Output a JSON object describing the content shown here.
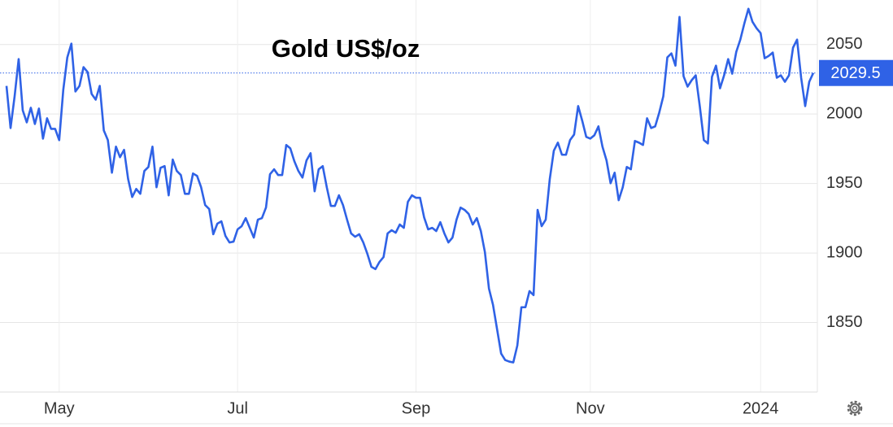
{
  "chart_data": {
    "type": "line",
    "title": "Gold US$/oz",
    "categories": [
      null,
      null,
      null,
      null,
      null,
      null,
      null,
      null,
      null,
      null,
      null,
      null,
      null,
      "May",
      null,
      null,
      null,
      null,
      null,
      null,
      null,
      null,
      null,
      null,
      null,
      null,
      null,
      null,
      null,
      null,
      null,
      null,
      null,
      null,
      null,
      null,
      null,
      null,
      null,
      null,
      null,
      null,
      null,
      null,
      null,
      null,
      null,
      null,
      null,
      null,
      null,
      null,
      null,
      null,
      null,
      null,
      null,
      "Jul",
      null,
      null,
      null,
      null,
      null,
      null,
      null,
      null,
      null,
      null,
      null,
      null,
      null,
      null,
      null,
      null,
      null,
      null,
      null,
      null,
      null,
      null,
      null,
      null,
      null,
      null,
      null,
      null,
      null,
      null,
      null,
      null,
      null,
      null,
      null,
      null,
      null,
      null,
      null,
      null,
      null,
      null,
      null,
      "Sep",
      null,
      null,
      null,
      null,
      null,
      null,
      null,
      null,
      null,
      null,
      null,
      null,
      null,
      null,
      null,
      null,
      null,
      null,
      null,
      null,
      null,
      null,
      null,
      null,
      null,
      null,
      null,
      null,
      null,
      null,
      null,
      null,
      null,
      null,
      null,
      null,
      null,
      null,
      null,
      null,
      null,
      null,
      "Nov",
      null,
      null,
      null,
      null,
      null,
      null,
      null,
      null,
      null,
      null,
      null,
      null,
      null,
      null,
      null,
      null,
      null,
      null,
      null,
      null,
      null,
      null,
      null,
      null,
      null,
      null,
      null,
      null,
      null,
      null,
      null,
      null,
      null,
      null,
      null,
      null,
      null,
      null,
      null,
      null,
      null,
      "2024",
      null,
      null,
      null,
      null,
      null,
      null,
      null,
      null,
      null,
      null,
      null,
      null,
      null
    ],
    "series": [
      {
        "name": "Gold",
        "color": "#2f62e6",
        "values": [
          2020.2,
          1989.9,
          2012.7,
          2039.5,
          2002.7,
          1994,
          2004.5,
          1992.8,
          2003.9,
          1982.3,
          1996.9,
          1989.3,
          1989.3,
          1981.2,
          2017.3,
          2040.7,
          2050.6,
          2016.2,
          2020.2,
          2033.7,
          2030.2,
          2014.4,
          2010.3,
          2020.2,
          1988.2,
          1981.2,
          1957.8,
          1976.5,
          1968.9,
          1974.2,
          1953.2,
          1940.3,
          1946.1,
          1942.6,
          1959,
          1961.9,
          1976.5,
          1947.3,
          1961.3,
          1962.5,
          1941.5,
          1967.2,
          1959,
          1956.1,
          1942.6,
          1942.6,
          1957.2,
          1955.5,
          1947.3,
          1934.5,
          1931.6,
          1913.5,
          1921.1,
          1922.8,
          1912.3,
          1907.6,
          1908.2,
          1917,
          1919.3,
          1925.1,
          1918.1,
          1911.1,
          1924,
          1925.1,
          1932.7,
          1956.7,
          1960.2,
          1956.1,
          1956.1,
          1977.7,
          1975.3,
          1966,
          1959,
          1954.3,
          1966.6,
          1971.8,
          1944.4,
          1960.2,
          1962.5,
          1947.3,
          1933.9,
          1933.9,
          1941.5,
          1934.5,
          1924,
          1914.1,
          1911.7,
          1913.5,
          1907.6,
          1899.5,
          1890.1,
          1888.4,
          1893.6,
          1897.1,
          1914.1,
          1916.4,
          1914.6,
          1920.5,
          1918.1,
          1936.8,
          1941.5,
          1939.7,
          1939.7,
          1925.7,
          1917,
          1918.1,
          1915.8,
          1922.2,
          1914.1,
          1907.6,
          1911.1,
          1924,
          1932.7,
          1931,
          1928.1,
          1920.5,
          1925.1,
          1915.8,
          1900.6,
          1874.4,
          1862.7,
          1845.2,
          1827.7,
          1823,
          1821.9,
          1821.3,
          1833.5,
          1861,
          1861,
          1872.6,
          1869.7,
          1931,
          1919.3,
          1924,
          1953.2,
          1973.6,
          1979.4,
          1970.7,
          1970.7,
          1981.2,
          1985.2,
          2005.7,
          1995.2,
          1983.5,
          1982.3,
          1984.7,
          1991.1,
          1976.5,
          1966.6,
          1950.2,
          1957.8,
          1938,
          1947.3,
          1961.9,
          1960.2,
          1980.6,
          1979.4,
          1977.7,
          1996.9,
          1989.9,
          1991.1,
          2001,
          2012.7,
          2040.7,
          2043.6,
          2034.8,
          2069.8,
          2027.2,
          2019.7,
          2024.3,
          2027.8,
          2005.7,
          1981.2,
          1978.8,
          2026.7,
          2034.8,
          2018.5,
          2027.8,
          2039.5,
          2029,
          2044.7,
          2053.5,
          2065.2,
          2075.7,
          2066.3,
          2061.7,
          2058.2,
          2040.1,
          2041.8,
          2044.2,
          2026.1,
          2027.8,
          2023.2,
          2027.8,
          2047.7,
          2053.5,
          2026.1,
          2005.7,
          2023.2,
          2029.5
        ]
      }
    ],
    "ylim": [
      1800,
      2082
    ],
    "yticks": [
      1850,
      1900,
      1950,
      2000,
      2050
    ],
    "grid": true
  }
}
